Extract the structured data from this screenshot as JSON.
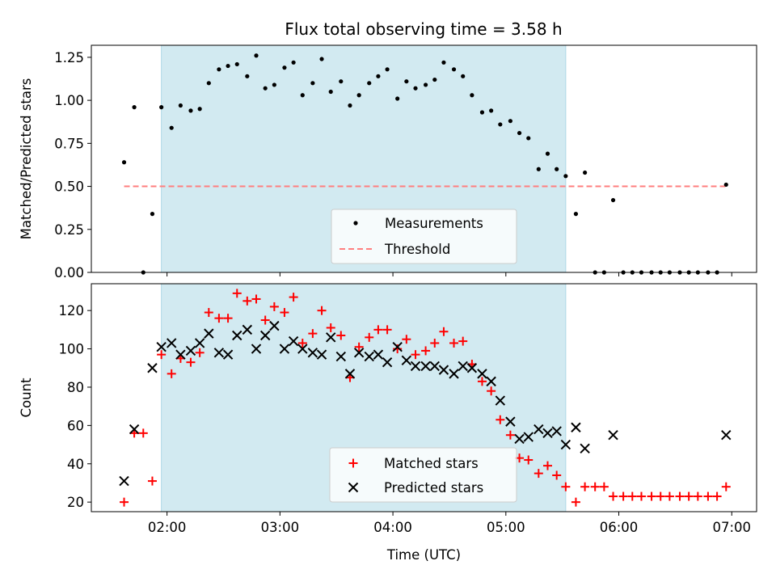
{
  "title": "Flux total observing time = 3.58 h",
  "colors": {
    "shade": "#add8e6",
    "measurement": "#000000",
    "threshold": "#ff7f7f",
    "matched": "#ff0000",
    "predicted": "#000000"
  },
  "chart_data": [
    {
      "type": "scatter",
      "ylabel": "Matched/Predicted stars",
      "xlabel": "",
      "x_unit": "hours UTC",
      "xlim": [
        1.33,
        7.22
      ],
      "ylim": [
        0,
        1.32
      ],
      "yticks": [
        0,
        0.25,
        0.5,
        0.75,
        1.0,
        1.25
      ],
      "ytick_labels": [
        "0.00",
        "0.25",
        "0.50",
        "0.75",
        "1.00",
        "1.25"
      ],
      "shaded_x_range": [
        1.95,
        5.53
      ],
      "threshold": {
        "y": 0.5,
        "x": [
          1.62,
          6.95
        ]
      },
      "legend": {
        "position": "lower center",
        "entries": [
          "Measurements",
          "Threshold"
        ]
      },
      "series": [
        {
          "name": "Measurements",
          "x": [
            1.62,
            1.71,
            1.79,
            1.87,
            1.95,
            2.04,
            2.12,
            2.21,
            2.29,
            2.37,
            2.46,
            2.54,
            2.62,
            2.71,
            2.79,
            2.87,
            2.95,
            3.04,
            3.12,
            3.2,
            3.29,
            3.37,
            3.45,
            3.54,
            3.62,
            3.7,
            3.79,
            3.87,
            3.95,
            4.04,
            4.12,
            4.2,
            4.29,
            4.37,
            4.45,
            4.54,
            4.62,
            4.7,
            4.79,
            4.87,
            4.95,
            5.04,
            5.12,
            5.2,
            5.29,
            5.37,
            5.45,
            5.53,
            5.62,
            5.7,
            5.79,
            5.87,
            5.95,
            6.04,
            6.12,
            6.2,
            6.29,
            6.37,
            6.45,
            6.54,
            6.62,
            6.7,
            6.79,
            6.87,
            6.95
          ],
          "y": [
            0.64,
            0.96,
            0.0,
            0.34,
            0.96,
            0.84,
            0.97,
            0.94,
            0.95,
            1.1,
            1.18,
            1.2,
            1.21,
            1.14,
            1.26,
            1.07,
            1.09,
            1.19,
            1.22,
            1.03,
            1.1,
            1.24,
            1.05,
            1.11,
            0.97,
            1.03,
            1.1,
            1.14,
            1.18,
            1.01,
            1.11,
            1.07,
            1.09,
            1.12,
            1.22,
            1.18,
            1.14,
            1.03,
            0.93,
            0.94,
            0.86,
            0.88,
            0.81,
            0.78,
            0.6,
            0.69,
            0.6,
            0.56,
            0.34,
            0.58,
            0.0,
            0.0,
            0.42,
            0.0,
            0.0,
            0.0,
            0.0,
            0.0,
            0.0,
            0.0,
            0.0,
            0.0,
            0.0,
            0.0,
            0.51
          ]
        }
      ]
    },
    {
      "type": "scatter",
      "ylabel": "Count",
      "xlabel": "Time (UTC)",
      "x_unit": "hours UTC",
      "xlim": [
        1.33,
        7.22
      ],
      "ylim": [
        15,
        134
      ],
      "yticks": [
        20,
        40,
        60,
        80,
        100,
        120
      ],
      "ytick_labels": [
        "20",
        "40",
        "60",
        "80",
        "100",
        "120"
      ],
      "xticks": [
        2,
        3,
        4,
        5,
        6,
        7
      ],
      "xtick_labels": [
        "02:00",
        "03:00",
        "04:00",
        "05:00",
        "06:00",
        "07:00"
      ],
      "shaded_x_range": [
        1.95,
        5.53
      ],
      "legend": {
        "position": "lower center",
        "entries": [
          "Matched stars",
          "Predicted stars"
        ]
      },
      "x": [
        1.62,
        1.71,
        1.79,
        1.87,
        1.95,
        2.04,
        2.12,
        2.21,
        2.29,
        2.37,
        2.46,
        2.54,
        2.62,
        2.71,
        2.79,
        2.87,
        2.95,
        3.04,
        3.12,
        3.2,
        3.29,
        3.37,
        3.45,
        3.54,
        3.62,
        3.7,
        3.79,
        3.87,
        3.95,
        4.04,
        4.12,
        4.2,
        4.29,
        4.37,
        4.45,
        4.54,
        4.62,
        4.7,
        4.79,
        4.87,
        4.95,
        5.04,
        5.12,
        5.2,
        5.29,
        5.37,
        5.45,
        5.53,
        5.62,
        5.7,
        5.79,
        5.87,
        5.95,
        6.04,
        6.12,
        6.2,
        6.29,
        6.37,
        6.45,
        6.54,
        6.62,
        6.7,
        6.79,
        6.87,
        6.95
      ],
      "series": [
        {
          "name": "Matched stars",
          "marker": "plus",
          "values": [
            20,
            56,
            56,
            31,
            97,
            87,
            95,
            93,
            98,
            119,
            116,
            116,
            129,
            125,
            126,
            115,
            122,
            119,
            127,
            103,
            108,
            120,
            111,
            107,
            85,
            101,
            106,
            110,
            110,
            100,
            105,
            97,
            99,
            103,
            109,
            103,
            104,
            92,
            83,
            78,
            63,
            55,
            43,
            42,
            35,
            39,
            34,
            28,
            20,
            28,
            28,
            28,
            23,
            23,
            23,
            23,
            23,
            23,
            23,
            23,
            23,
            23,
            23,
            23,
            28
          ]
        },
        {
          "name": "Predicted stars",
          "marker": "x",
          "values": [
            31,
            58,
            null,
            90,
            101,
            103,
            97,
            99,
            103,
            108,
            98,
            97,
            107,
            110,
            100,
            107,
            112,
            100,
            104,
            100,
            98,
            97,
            106,
            96,
            87,
            98,
            96,
            97,
            93,
            101,
            94,
            91,
            91,
            91,
            89,
            87,
            91,
            90,
            87,
            83,
            73,
            62,
            53,
            54,
            58,
            56,
            57,
            50,
            59,
            48,
            null,
            null,
            55,
            null,
            null,
            null,
            null,
            null,
            null,
            null,
            null,
            null,
            null,
            null,
            55
          ]
        }
      ]
    }
  ]
}
